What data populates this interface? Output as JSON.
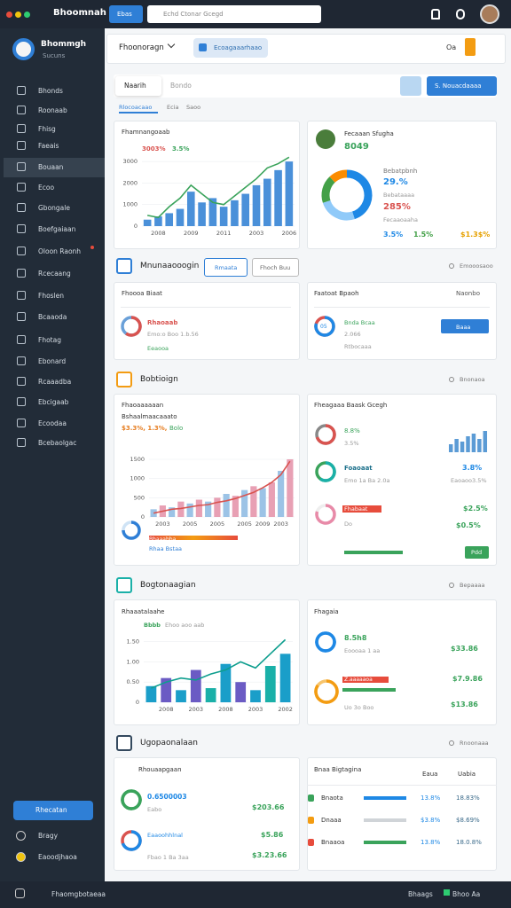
{
  "topbar": {
    "app_name": "Bhoomnah",
    "tab": "Ebas",
    "search": "Echd Ctonar Gcegd"
  },
  "sidebar": {
    "brand": "Bhommgh",
    "brand_sub": "Sucuns",
    "items": [
      "Bhonds",
      "Roonaab",
      "Fhisg",
      "Faeais",
      "Bouaan",
      "Ecoo",
      "Gbongale",
      "Boefgaiaan",
      "Oloon Raonh",
      "Rcecaang",
      "Fhoslen",
      "Bcaaoda",
      "Fhotag",
      "Ebonard",
      "Rcaaadba",
      "Ebcigaab",
      "Ecoodaa",
      "Bcebaolgac"
    ],
    "active": 4,
    "cta": "Rhecatan",
    "footer_items": [
      "Bragy",
      "Eaoodjhaoa"
    ]
  },
  "header": {
    "dropdown": "Fhoonoragn",
    "button": "Ecoagaaarhaao",
    "badge": "Oa"
  },
  "tabs": {
    "items": [
      "Naarih",
      "Bondo"
    ],
    "action": "S. Nouacdaaaa",
    "subtabs": [
      "Rlocoacaao",
      "Ecia",
      "Saoo"
    ]
  },
  "sections": [
    {
      "title": "Mnunaaooogin",
      "buttons": [
        "Rmaata",
        "Fhoch Buu"
      ],
      "link": "Emooosaoo"
    },
    {
      "title": "Bobtioign",
      "link": "Bnonaoa"
    },
    {
      "title": "Bogtonaagian",
      "link": "Bepaaaa"
    },
    {
      "title": "Ugopaonalaan",
      "link": "Rnoonaaa"
    }
  ],
  "cards": [
    {
      "title": "Fhoooa Biaat",
      "row_title": "Rhaoaab",
      "row_sub": "Emo:o Boo 1.b.56",
      "link": "Eeaooa"
    },
    {
      "title": "Faatoat Bpaoh",
      "menu": "Naonbo",
      "value": "05",
      "rows": [
        "Bnda Bcaa",
        "2.066",
        "Rtbocaaa"
      ],
      "button": "Baaa"
    },
    {
      "title": "Fheagaaa Baask Gcegh",
      "rows": [
        [
          "8.8%",
          "3.5%"
        ],
        [
          "Foaoaat",
          "Emo 1a Ba 2.0a",
          "3.8%",
          "Eaoaoo3.5%"
        ],
        [
          "Fhabaat",
          "Do",
          "$2.5%",
          "$0.5%"
        ]
      ],
      "button": "Pdd"
    },
    {
      "title": "Fhagaia",
      "rows": [
        [
          "8.5h8",
          "Eoooaa 1 aa",
          "$33.86"
        ],
        [
          "Z.aaaaaoa",
          "Uo 3o Boo",
          "$7.9.86",
          "$13.86"
        ]
      ]
    },
    {
      "title": "Rhouaapgaan",
      "rows": [
        [
          "0.6500003",
          "Eabo",
          "$203.66"
        ],
        [
          "Eaaoohhlnal",
          "Fbao 1 Ba 3aa",
          "$5.86",
          "$3.23.66"
        ]
      ]
    },
    {
      "title": "Bnaa Bigtagina",
      "headers": [
        "Eaua",
        "Uabia"
      ],
      "rows": [
        [
          "Bnaota",
          "13.8%",
          "18.83%"
        ],
        [
          "Dnaaa",
          "$3.8%",
          "$8.69%"
        ],
        [
          "Bnaaoa",
          "13.8%",
          "18.0.8%"
        ]
      ]
    }
  ],
  "bottombar": {
    "left": "Fhaomgbotaeaa",
    "right": [
      "Bhaags",
      "Bhoo Aa"
    ]
  },
  "chart_data": [
    {
      "type": "bar",
      "title": "Fhamnangoaab",
      "legend": [
        "3003%",
        "3.5%"
      ],
      "categories": [
        null,
        "2008",
        null,
        null,
        "2009",
        null,
        null,
        "2011",
        null,
        null,
        "2003",
        null,
        null,
        "2006"
      ],
      "series": [
        {
          "type": "bar",
          "color": "#4a90d9",
          "values": [
            300,
            450,
            600,
            800,
            1600,
            1100,
            1300,
            900,
            1200,
            1500,
            1900,
            2200,
            2600,
            3000
          ]
        },
        {
          "type": "line",
          "color": "#3aa35b",
          "values": [
            500,
            400,
            900,
            1300,
            1900,
            1500,
            1100,
            1000,
            1400,
            1800,
            2200,
            2700,
            2900,
            3200
          ]
        }
      ],
      "ylim": [
        0,
        3500
      ],
      "yticks": [
        0,
        1000,
        2000,
        3000
      ]
    },
    {
      "type": "pie",
      "title": "Fecaaan Sfugha",
      "big": "8049",
      "annotations": [
        "Bebatpbnh",
        "29.%",
        "Bebataaaa",
        "285%",
        "Fecaaoaaha"
      ],
      "footer": [
        "3.5%",
        "1.5%",
        "$1.3$%"
      ],
      "values": [
        45,
        25,
        18,
        12
      ],
      "colors": [
        "#1e88e5",
        "#90caf9",
        "#43a047",
        "#fb8c00"
      ]
    },
    {
      "type": "bar",
      "title": "Fhaoaaaaaan",
      "subtitle": "Bshaalmaacaaato",
      "legend": [
        "$3.3%, 1.3%,",
        "Bolo"
      ],
      "footer": [
        "Bhaaabba",
        "Rhaa Bstaa"
      ],
      "categories": [
        null,
        "2003",
        null,
        null,
        "2005",
        null,
        null,
        "2005",
        null,
        null,
        "2005",
        null,
        "2009",
        null,
        "2003",
        null
      ],
      "series": [
        {
          "type": "bar",
          "colors": [
            "#9cc3e6",
            "#e8a0b4",
            "#9cc3e6",
            "#e8a0b4",
            "#9cc3e6",
            "#e8a0b4",
            "#9cc3e6",
            "#e8a0b4",
            "#9cc3e6",
            "#e8a0b4",
            "#9cc3e6",
            "#e8a0b4",
            "#9cc3e6",
            "#e8a0b4",
            "#9cc3e6",
            "#e8a0b4"
          ],
          "values": [
            200,
            300,
            250,
            400,
            350,
            450,
            400,
            500,
            600,
            550,
            700,
            800,
            750,
            900,
            1200,
            1500
          ]
        },
        {
          "type": "line",
          "color": "#d9534f",
          "values": [
            100,
            150,
            200,
            220,
            260,
            300,
            320,
            380,
            420,
            480,
            560,
            640,
            760,
            900,
            1100,
            1450
          ]
        }
      ],
      "ylim": [
        0,
        1800
      ],
      "yticks": [
        0,
        500,
        1000,
        1500
      ]
    },
    {
      "type": "bar",
      "categories": [
        null,
        null,
        null,
        null,
        null,
        null,
        null
      ],
      "series": [
        {
          "type": "bar",
          "color": "#5b9bd5",
          "values": [
            3,
            5,
            4,
            6,
            7,
            5,
            8
          ]
        }
      ],
      "ylim": [
        0,
        10
      ]
    },
    {
      "type": "bar",
      "title": "Rhaaatalaahe",
      "legend": [
        "Bbbb",
        "Ehoo aoo aab"
      ],
      "categories": [
        null,
        "2008",
        null,
        "2003",
        null,
        "2008",
        null,
        "2003",
        null,
        "2002"
      ],
      "series": [
        {
          "type": "bar",
          "colors": [
            "#1a9ec9",
            "#6b5bc4",
            "#1a9ec9",
            "#6b5bc4",
            "#1ab0a8",
            "#1a9ec9",
            "#6b5bc4",
            "#1a9ec9",
            "#1ab0a8",
            "#1a9ec9"
          ],
          "values": [
            0.4,
            0.6,
            0.3,
            0.8,
            0.35,
            0.95,
            0.5,
            0.3,
            0.9,
            1.2
          ]
        },
        {
          "type": "line",
          "color": "#0e9e8e",
          "values": [
            0.35,
            0.5,
            0.6,
            0.55,
            0.7,
            0.8,
            1.0,
            0.85,
            1.2,
            1.55
          ]
        }
      ],
      "ylim": [
        0,
        1.8
      ],
      "yticks": [
        0,
        {
          "value": 0.5,
          "label": "0.50"
        },
        {
          "value": 1,
          "label": "1.00"
        },
        {
          "value": 1.5,
          "label": "1.50"
        }
      ]
    }
  ]
}
